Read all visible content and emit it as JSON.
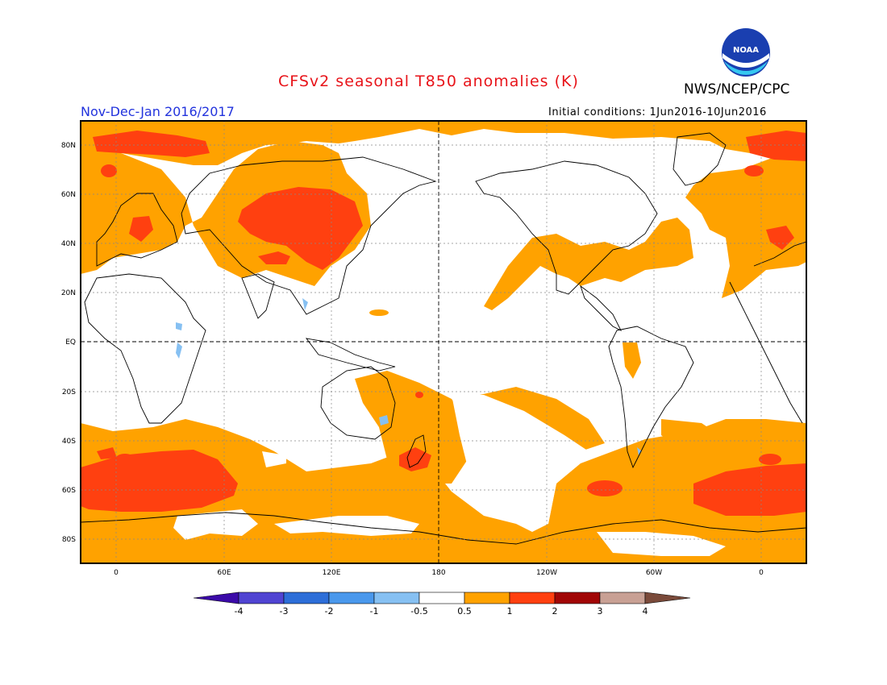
{
  "header": {
    "title": "CFSv2 seasonal T850 anomalies (K)",
    "org": "NWS/NCEP/CPC",
    "season": "Nov-Dec-Jan 2016/2017",
    "init_conditions": "Initial conditions: 1Jun2016-10Jun2016"
  },
  "logo": {
    "text": "NOAA"
  },
  "axes": {
    "lat_labels": [
      "80N",
      "60N",
      "40N",
      "20N",
      "EQ",
      "20S",
      "40S",
      "60S",
      "80S"
    ],
    "lon_labels": [
      "0",
      "60E",
      "120E",
      "180",
      "120W",
      "60W",
      "0"
    ]
  },
  "colorbar": {
    "labels": [
      "-4",
      "-3",
      "-2",
      "-1",
      "-0.5",
      "0.5",
      "1",
      "2",
      "3",
      "4"
    ],
    "colors": [
      "#3b0aa8",
      "#5044d2",
      "#2d6ed8",
      "#4a98ec",
      "#86c0f2",
      "#ffffff",
      "#ffa200",
      "#ff4010",
      "#a10606",
      "#c8a094",
      "#7a4a3a"
    ]
  },
  "colors": {
    "anom_05_1": "#ffa200",
    "anom_1_2": "#ff4010",
    "anom_neg": "#86c0f2",
    "title": "#e8141a",
    "season": "#2233dd"
  }
}
